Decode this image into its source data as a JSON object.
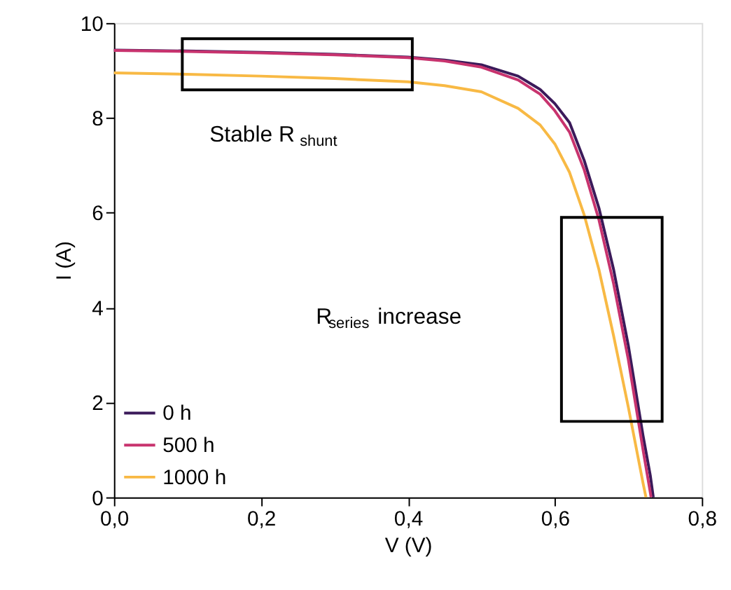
{
  "chart_data": {
    "type": "line",
    "xlabel": "V (V)",
    "ylabel": "I (A)",
    "xlim": [
      0,
      0.8
    ],
    "ylim": [
      0,
      10
    ],
    "xticks": [
      {
        "value": 0,
        "label": "0,0"
      },
      {
        "value": 0.2,
        "label": "0,2"
      },
      {
        "value": 0.4,
        "label": "0,4"
      },
      {
        "value": 0.6,
        "label": "0,6"
      },
      {
        "value": 0.8,
        "label": "0,8"
      }
    ],
    "yticks": [
      0,
      2,
      4,
      6,
      8,
      10
    ],
    "grid": false,
    "legend": "bottom left",
    "line_style": "solid",
    "marker": "none",
    "annotations": [
      "Stable R$_{shunt}$",
      "R$_{series}$ increase"
    ],
    "series": [
      {
        "name": "0 h",
        "color": "#3b1a5a",
        "x": [
          0,
          0.1,
          0.2,
          0.3,
          0.4,
          0.45,
          0.5,
          0.55,
          0.58,
          0.6,
          0.62,
          0.64,
          0.66,
          0.68,
          0.7,
          0.72,
          0.73,
          0.734
        ],
        "values": [
          9.43,
          9.41,
          9.38,
          9.34,
          9.28,
          9.22,
          9.12,
          8.88,
          8.6,
          8.3,
          7.9,
          7.1,
          6.1,
          4.8,
          3.2,
          1.3,
          0.45,
          0
        ]
      },
      {
        "name": "500 h",
        "color": "#c8336e",
        "x": [
          0,
          0.1,
          0.2,
          0.3,
          0.4,
          0.45,
          0.5,
          0.55,
          0.58,
          0.6,
          0.62,
          0.64,
          0.66,
          0.68,
          0.7,
          0.72,
          0.731
        ],
        "values": [
          9.42,
          9.4,
          9.37,
          9.33,
          9.27,
          9.2,
          9.07,
          8.8,
          8.5,
          8.15,
          7.7,
          6.9,
          5.85,
          4.5,
          2.9,
          1.0,
          0
        ]
      },
      {
        "name": "1000 h",
        "color": "#f8b944",
        "x": [
          0,
          0.1,
          0.2,
          0.3,
          0.4,
          0.45,
          0.5,
          0.55,
          0.58,
          0.6,
          0.62,
          0.64,
          0.66,
          0.68,
          0.7,
          0.72,
          0.724
        ],
        "values": [
          8.95,
          8.92,
          8.88,
          8.83,
          8.76,
          8.68,
          8.55,
          8.2,
          7.85,
          7.45,
          6.85,
          5.95,
          4.8,
          3.4,
          1.9,
          0.3,
          0
        ]
      }
    ]
  }
}
